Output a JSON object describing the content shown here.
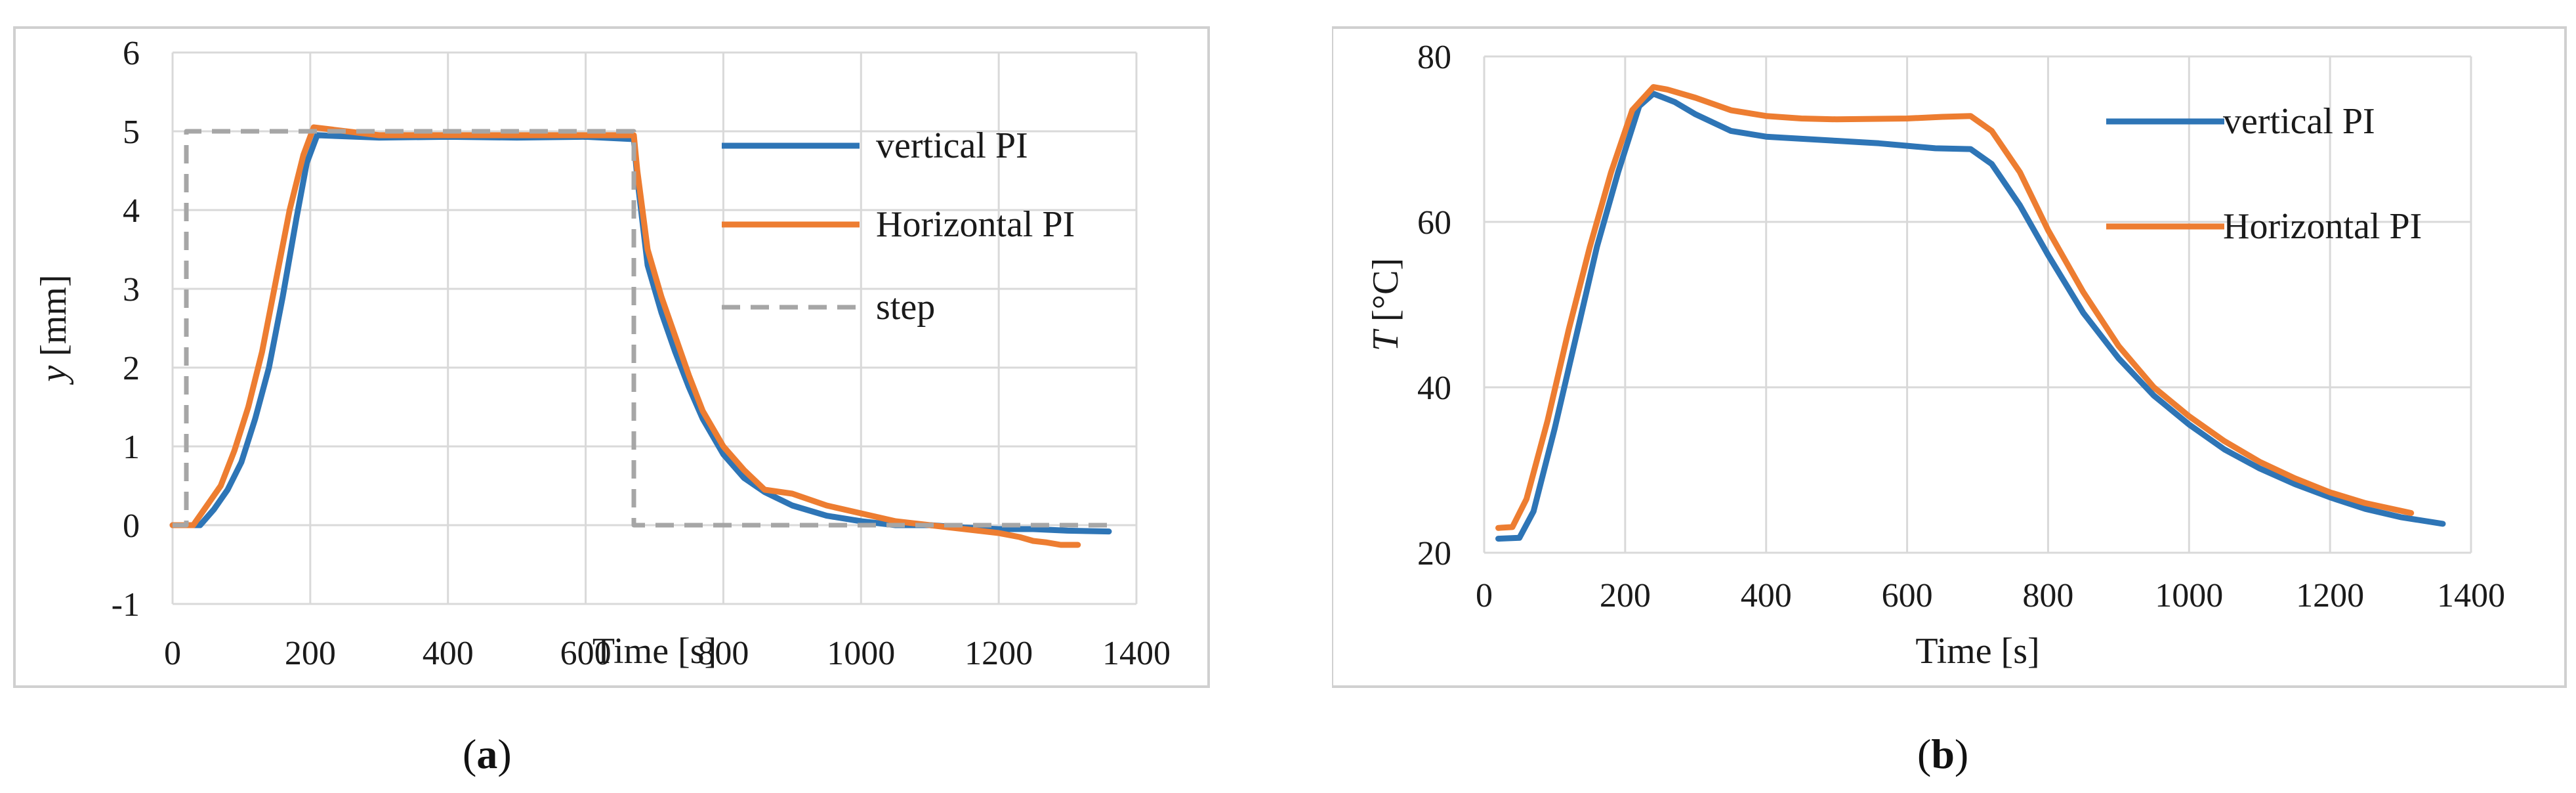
{
  "chart_data": [
    {
      "type": "line",
      "panel_label": "a",
      "xlabel": "Time [s]",
      "ylabel_var": "y",
      "ylabel_unit": " [mm]",
      "xlim": [
        0,
        1400
      ],
      "ylim": [
        -1,
        6
      ],
      "xticks": [
        0,
        200,
        400,
        600,
        800,
        1000,
        1200,
        1400
      ],
      "yticks": [
        -1,
        0,
        1,
        2,
        3,
        4,
        5,
        6
      ],
      "legend_position": "right",
      "series": [
        {
          "name": "vertical PI",
          "color": "#2E75B6",
          "dash": "solid",
          "x": [
            0,
            40,
            60,
            80,
            100,
            120,
            140,
            160,
            180,
            195,
            210,
            300,
            400,
            500,
            600,
            670,
            675,
            690,
            710,
            730,
            750,
            770,
            800,
            830,
            860,
            900,
            950,
            1000,
            1050,
            1100,
            1150,
            1200,
            1250,
            1300,
            1360
          ],
          "y": [
            0,
            0,
            0.2,
            0.45,
            0.8,
            1.35,
            2.0,
            2.9,
            3.9,
            4.6,
            4.95,
            4.92,
            4.93,
            4.92,
            4.93,
            4.9,
            4.4,
            3.3,
            2.7,
            2.2,
            1.75,
            1.35,
            0.9,
            0.6,
            0.42,
            0.25,
            0.12,
            0.05,
            0.0,
            0.0,
            -0.03,
            -0.05,
            -0.05,
            -0.07,
            -0.08
          ]
        },
        {
          "name": "Horizontal PI",
          "color": "#ED7D31",
          "dash": "solid",
          "x": [
            0,
            30,
            50,
            70,
            90,
            110,
            130,
            150,
            170,
            190,
            205,
            300,
            400,
            500,
            600,
            670,
            675,
            690,
            710,
            730,
            750,
            770,
            800,
            830,
            860,
            900,
            950,
            1000,
            1050,
            1100,
            1150,
            1200,
            1230,
            1250,
            1270,
            1290,
            1315
          ],
          "y": [
            0,
            0,
            0.25,
            0.5,
            0.95,
            1.5,
            2.2,
            3.1,
            4.0,
            4.7,
            5.05,
            4.95,
            4.95,
            4.95,
            4.95,
            4.95,
            4.5,
            3.5,
            2.9,
            2.4,
            1.9,
            1.45,
            1.0,
            0.7,
            0.45,
            0.4,
            0.25,
            0.15,
            0.05,
            0.0,
            -0.05,
            -0.1,
            -0.15,
            -0.2,
            -0.22,
            -0.25,
            -0.25
          ]
        },
        {
          "name": "step",
          "color": "#A6A6A6",
          "dash": "dashed",
          "x": [
            0,
            20,
            20,
            670,
            670,
            1360
          ],
          "y": [
            0,
            0,
            5,
            5,
            0,
            0
          ]
        }
      ]
    },
    {
      "type": "line",
      "panel_label": "b",
      "xlabel": "Time [s]",
      "ylabel_var": "T",
      "ylabel_unit": " [°C]",
      "xlim": [
        0,
        1400
      ],
      "ylim": [
        20,
        80
      ],
      "xticks": [
        0,
        200,
        400,
        600,
        800,
        1000,
        1200,
        1400
      ],
      "yticks": [
        20,
        40,
        60,
        80
      ],
      "legend_position": "top-right",
      "series": [
        {
          "name": "vertical PI",
          "color": "#2E75B6",
          "dash": "solid",
          "x": [
            20,
            50,
            70,
            100,
            130,
            160,
            190,
            220,
            240,
            270,
            300,
            350,
            400,
            500,
            560,
            600,
            640,
            690,
            720,
            760,
            800,
            850,
            900,
            950,
            1000,
            1050,
            1100,
            1150,
            1200,
            1250,
            1300,
            1360
          ],
          "y": [
            21.7,
            21.8,
            25,
            35,
            46,
            57,
            66,
            74,
            75.5,
            74.5,
            73,
            71,
            70.3,
            69.8,
            69.5,
            69.2,
            68.9,
            68.8,
            67,
            62,
            56,
            49,
            43.5,
            39,
            35.5,
            32.5,
            30.2,
            28.3,
            26.7,
            25.3,
            24.3,
            23.5
          ]
        },
        {
          "name": "Horizontal PI",
          "color": "#ED7D31",
          "dash": "solid",
          "x": [
            20,
            40,
            60,
            90,
            120,
            150,
            180,
            210,
            240,
            260,
            300,
            350,
            400,
            450,
            500,
            600,
            650,
            690,
            720,
            760,
            800,
            850,
            900,
            950,
            1000,
            1050,
            1100,
            1150,
            1200,
            1250,
            1315
          ],
          "y": [
            23,
            23.1,
            26.5,
            36,
            47,
            57,
            66,
            73.5,
            76.3,
            76,
            75,
            73.5,
            72.8,
            72.5,
            72.4,
            72.5,
            72.7,
            72.8,
            71,
            66,
            59,
            51.5,
            45,
            40,
            36.5,
            33.5,
            31,
            29,
            27.3,
            26,
            24.8
          ]
        }
      ]
    }
  ]
}
